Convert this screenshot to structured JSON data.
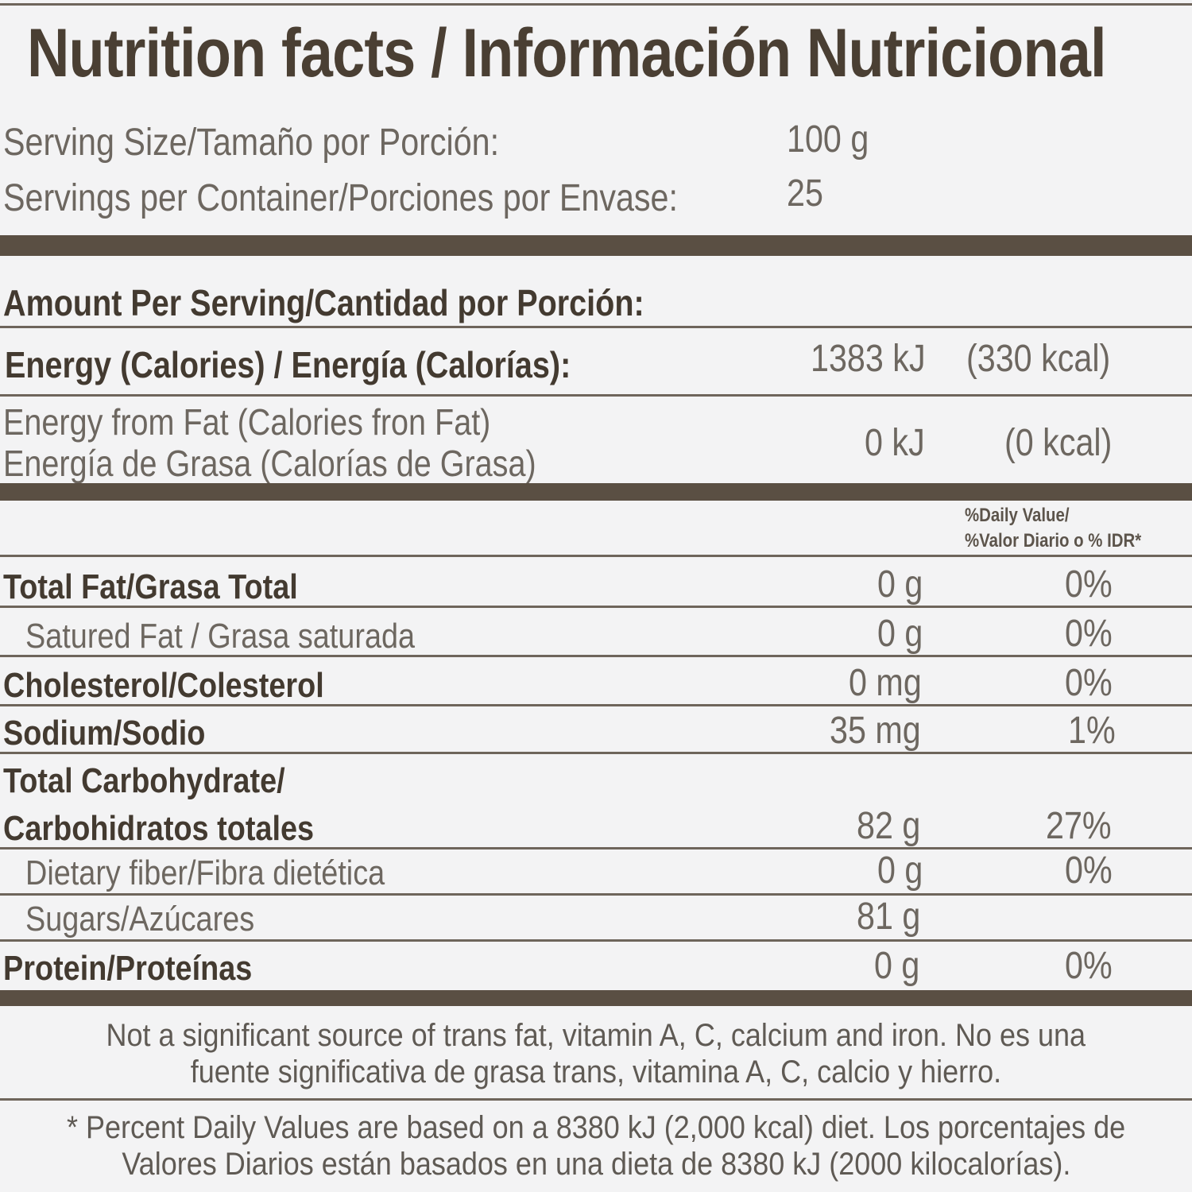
{
  "title": "Nutrition facts / Información Nutricional",
  "serving": {
    "size_label": "Serving Size/Tamaño por Porción:",
    "size_value": "100 g",
    "per_container_label": "Servings per Container/Porciones por Envase:",
    "per_container_value": "25"
  },
  "amount_header": "Amount Per Serving/Cantidad por Porción:",
  "energy": {
    "label": "Energy (Calories) / Energía (Calorías):",
    "kj": "1383 kJ",
    "kcal": "(330 kcal)"
  },
  "energy_fat": {
    "label_en": "Energy from Fat (Calories fron Fat)",
    "label_es": "Energía de Grasa (Calorías de Grasa)",
    "kj": "0 kJ",
    "kcal": "(0 kcal)"
  },
  "dv_header": {
    "line1": "%Daily Value/",
    "line2": "%Valor Diario o % IDR*"
  },
  "nutrients": [
    {
      "label": "Total Fat/Grasa Total",
      "amount": "0 g",
      "dv": "0%"
    },
    {
      "label": "Satured Fat / Grasa saturada",
      "amount": "0 g",
      "dv": "0%"
    },
    {
      "label": "Cholesterol/Colesterol",
      "amount": "0 mg",
      "dv": "0%"
    },
    {
      "label": "Sodium/Sodio",
      "amount": "35 mg",
      "dv": "1%"
    },
    {
      "label": "Total Carbohydrate/",
      "label2": "Carbohidratos totales",
      "amount": "82 g",
      "dv": "27%"
    },
    {
      "label": "Dietary fiber/Fibra dietética",
      "amount": "0 g",
      "dv": "0%"
    },
    {
      "label": "Sugars/Azúcares",
      "amount": "81 g",
      "dv": ""
    },
    {
      "label": "Protein/Proteínas",
      "amount": "0 g",
      "dv": "0%"
    }
  ],
  "footnote_trans": {
    "line1": "Not a significant source of trans fat, vitamin A, C, calcium and iron. No es una",
    "line2": "fuente significativa de grasa trans, vitamina A, C, calcio y hierro."
  },
  "footnote_dv": {
    "line1": "* Percent Daily Values are based on a 8380 kJ (2,000 kcal) diet. Los porcentajes de",
    "line2": "Valores Diarios están basados en una dieta de 8380 kJ (2000 kilocalorías)."
  },
  "colors": {
    "background": "#f3f3f4",
    "text": "#4a4036",
    "rule": "#5a4f43"
  }
}
